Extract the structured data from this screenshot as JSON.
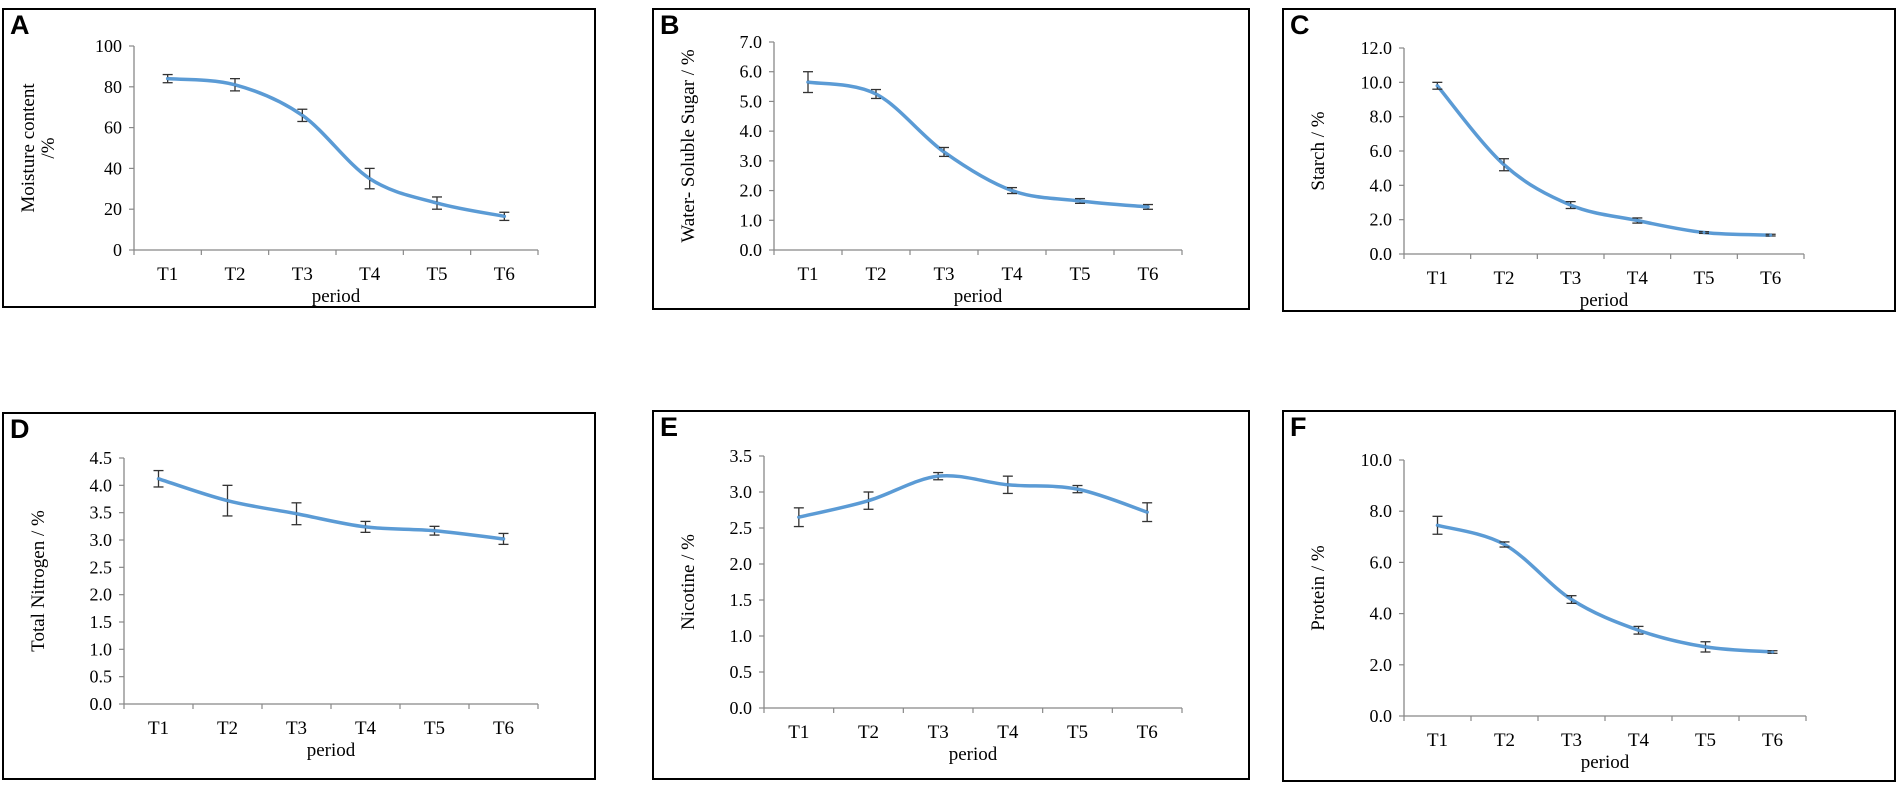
{
  "colors": {
    "series": "#5b9bd5",
    "axis": "#888888",
    "text": "#000000",
    "border": "#000000"
  },
  "chart_data": [
    {
      "panel": "A",
      "type": "line",
      "title": "",
      "xlabel": "period",
      "ylabel": "Moisture content /%",
      "ylabel_lines": [
        "Moisture content",
        "/%"
      ],
      "categories": [
        "T1",
        "T2",
        "T3",
        "T4",
        "T5",
        "T6"
      ],
      "values": [
        84,
        81,
        66,
        35,
        23,
        16.5
      ],
      "errors": [
        2,
        3,
        3,
        5,
        3,
        2
      ],
      "ylim": [
        0,
        100
      ],
      "yticks": [
        "0",
        "20",
        "40",
        "60",
        "80",
        "100"
      ],
      "legend": "none",
      "grid": false
    },
    {
      "panel": "B",
      "type": "line",
      "title": "",
      "xlabel": "period",
      "ylabel": "Water- Soluble Sugar / %",
      "ylabel_lines": [
        "Water- Soluble Sugar / %"
      ],
      "categories": [
        "T1",
        "T2",
        "T3",
        "T4",
        "T5",
        "T6"
      ],
      "values": [
        5.65,
        5.25,
        3.3,
        2.0,
        1.65,
        1.45
      ],
      "errors": [
        0.35,
        0.15,
        0.15,
        0.1,
        0.08,
        0.08
      ],
      "ylim": [
        0,
        7
      ],
      "yticks": [
        "0.0",
        "1.0",
        "2.0",
        "3.0",
        "4.0",
        "5.0",
        "6.0",
        "7.0"
      ],
      "legend": "none",
      "grid": false
    },
    {
      "panel": "C",
      "type": "line",
      "title": "",
      "xlabel": "period",
      "ylabel": "Starch / %",
      "ylabel_lines": [
        "Starch / %"
      ],
      "categories": [
        "T1",
        "T2",
        "T3",
        "T4",
        "T5",
        "T6"
      ],
      "values": [
        9.8,
        5.2,
        2.85,
        1.95,
        1.25,
        1.1
      ],
      "errors": [
        0.2,
        0.35,
        0.2,
        0.15,
        0.05,
        0.05
      ],
      "ylim": [
        0,
        12
      ],
      "yticks": [
        "0.0",
        "2.0",
        "4.0",
        "6.0",
        "8.0",
        "10.0",
        "12.0"
      ],
      "legend": "none",
      "grid": false
    },
    {
      "panel": "D",
      "type": "line",
      "title": "",
      "xlabel": "period",
      "ylabel": "Total Nitrogen / %",
      "ylabel_lines": [
        "Total Nitrogen / %"
      ],
      "categories": [
        "T1",
        "T2",
        "T3",
        "T4",
        "T5",
        "T6"
      ],
      "values": [
        4.12,
        3.72,
        3.48,
        3.24,
        3.17,
        3.02
      ],
      "errors": [
        0.15,
        0.28,
        0.2,
        0.1,
        0.08,
        0.1
      ],
      "ylim": [
        0,
        4.5
      ],
      "yticks": [
        "0.0",
        "0.5",
        "1.0",
        "1.5",
        "2.0",
        "2.5",
        "3.0",
        "3.5",
        "4.0",
        "4.5"
      ],
      "legend": "none",
      "grid": false
    },
    {
      "panel": "E",
      "type": "line",
      "title": "",
      "xlabel": "period",
      "ylabel": "Nicotine / %",
      "ylabel_lines": [
        "Nicotine / %"
      ],
      "categories": [
        "T1",
        "T2",
        "T3",
        "T4",
        "T5",
        "T6"
      ],
      "values": [
        2.65,
        2.88,
        3.22,
        3.1,
        3.04,
        2.72
      ],
      "errors": [
        0.13,
        0.12,
        0.05,
        0.12,
        0.05,
        0.13
      ],
      "ylim": [
        0,
        3.5
      ],
      "yticks": [
        "0.0",
        "0.5",
        "1.0",
        "1.5",
        "2.0",
        "2.5",
        "3.0",
        "3.5"
      ],
      "legend": "none",
      "grid": false
    },
    {
      "panel": "F",
      "type": "line",
      "title": "",
      "xlabel": "period",
      "ylabel": "Protein / %",
      "ylabel_lines": [
        "Protein / %"
      ],
      "categories": [
        "T1",
        "T2",
        "T3",
        "T4",
        "T5",
        "T6"
      ],
      "values": [
        7.45,
        6.7,
        4.55,
        3.35,
        2.7,
        2.5
      ],
      "errors": [
        0.35,
        0.1,
        0.15,
        0.15,
        0.2,
        0.05
      ],
      "ylim": [
        0,
        10
      ],
      "yticks": [
        "0.0",
        "2.0",
        "4.0",
        "6.0",
        "8.0",
        "10.0"
      ],
      "legend": "none",
      "grid": false
    }
  ]
}
